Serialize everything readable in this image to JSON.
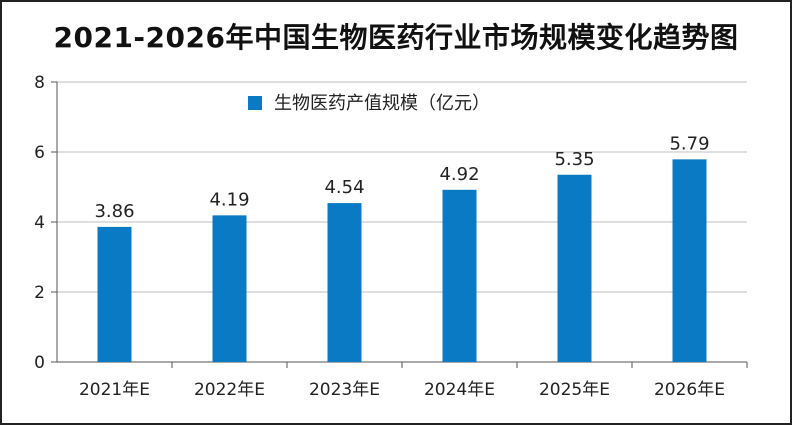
{
  "chart_data": {
    "type": "bar",
    "title": "2021-2026年中国生物医药行业市场规模变化趋势图",
    "categories": [
      "2021年E",
      "2022年E",
      "2023年E",
      "2024年E",
      "2025年E",
      "2026年E"
    ],
    "series": [
      {
        "name": "生物医药产值规模（亿元）",
        "values": [
          3.86,
          4.19,
          4.54,
          4.92,
          5.35,
          5.79
        ],
        "color": "#0A7AC4"
      }
    ],
    "ylim": [
      0,
      8
    ],
    "yticks": [
      0,
      2,
      4,
      6,
      8
    ],
    "grid": true,
    "legend": "top-center",
    "xlabel": "",
    "ylabel": ""
  }
}
